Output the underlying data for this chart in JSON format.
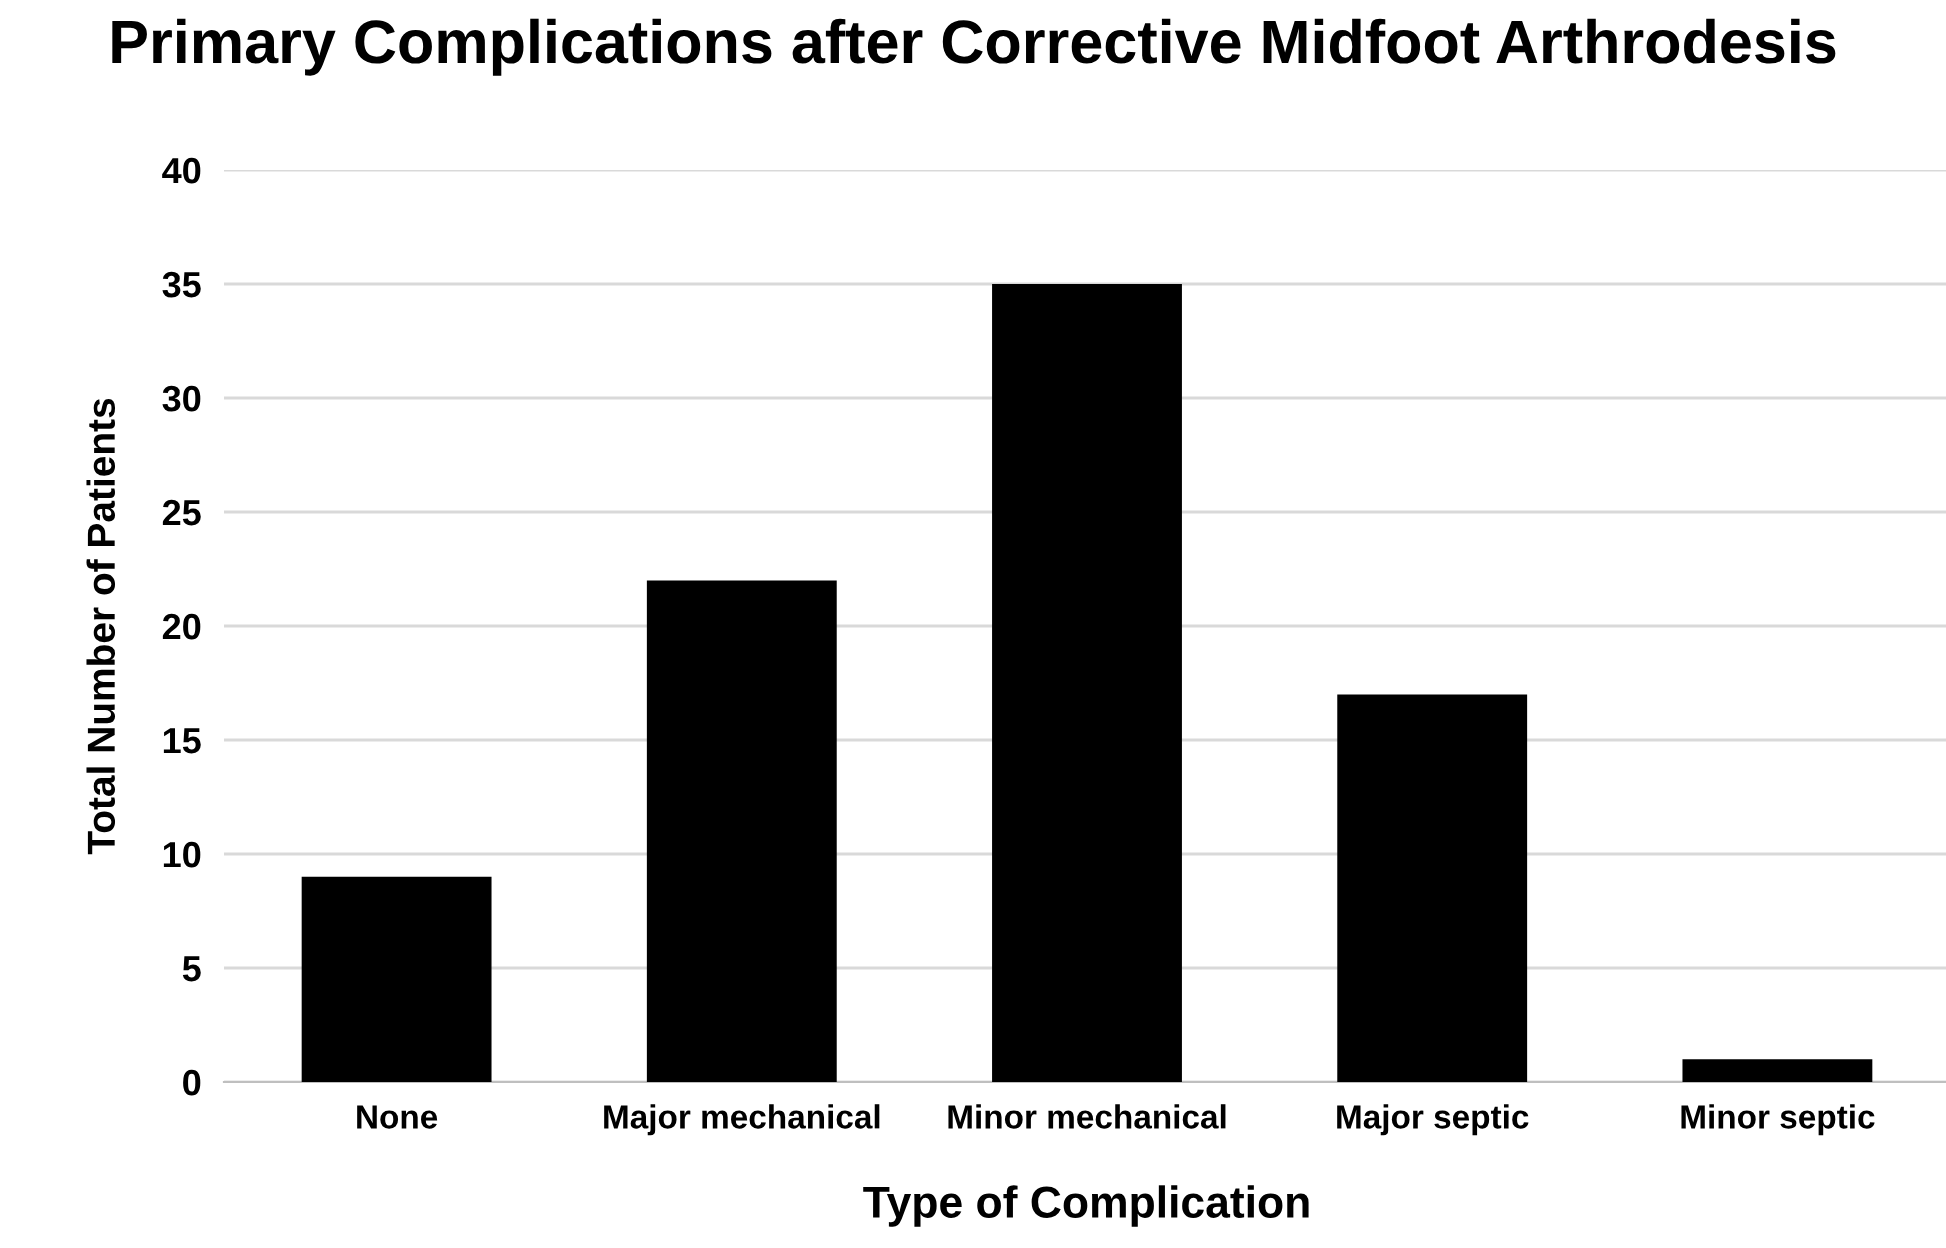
{
  "chart_data": {
    "type": "bar",
    "title": "Primary Complications after Corrective Midfoot Arthrodesis",
    "xlabel": "Type of Complication",
    "ylabel": "Total Number of Patients",
    "categories": [
      "None",
      "Major mechanical",
      "Minor mechanical",
      "Major septic",
      "Minor septic"
    ],
    "values": [
      9,
      22,
      35,
      17,
      1
    ],
    "color": "#000000",
    "ylim": [
      0,
      40
    ],
    "yticks": [
      0,
      5,
      10,
      15,
      20,
      25,
      30,
      35,
      40
    ],
    "grid": "y"
  }
}
